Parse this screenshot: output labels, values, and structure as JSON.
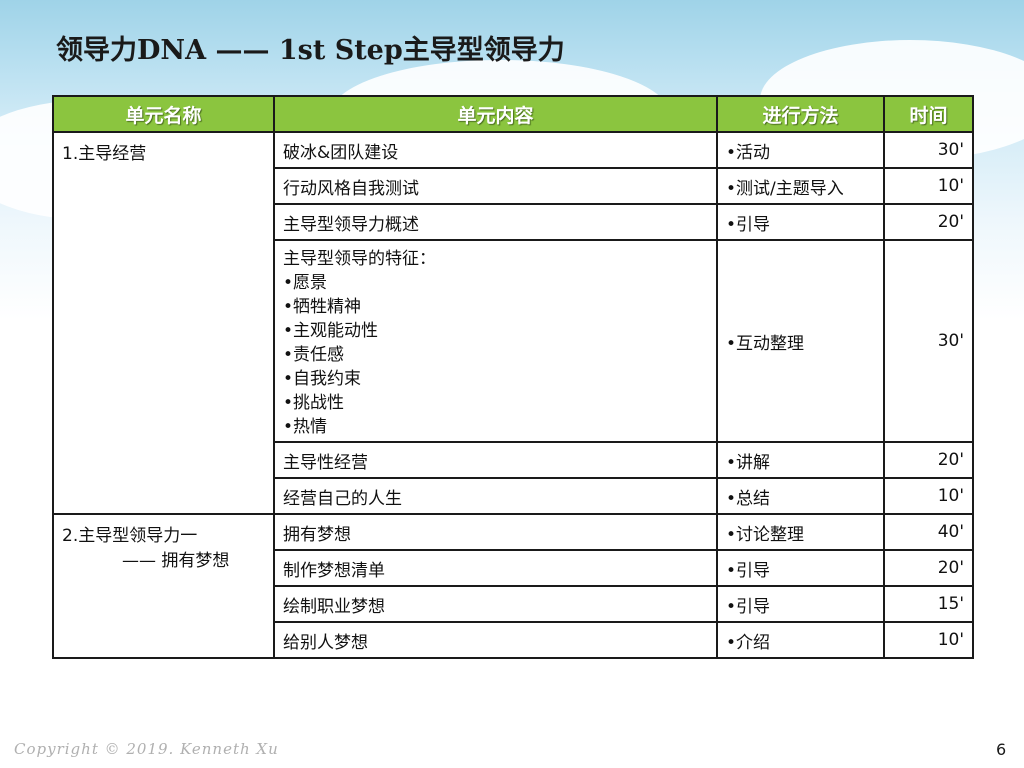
{
  "slide": {
    "title": "领导力DNA —— 1st Step主导型领导力",
    "footer": "Copyright © 2019. Kenneth Xu",
    "page_number": "6"
  },
  "table": {
    "headers": [
      "单元名称",
      "单元内容",
      "进行方法",
      "时间"
    ],
    "header_color": "#8bc53f",
    "units": [
      {
        "name_line1": "1.主导经营",
        "name_line2": ""
      },
      {
        "name_line1": "2.主导型领导力一",
        "name_line2": "—— 拥有梦想"
      }
    ],
    "rows": [
      {
        "content": "破冰&团队建设",
        "method": "•活动",
        "time": "30'"
      },
      {
        "content": "行动风格自我测试",
        "method": "•测试/主题导入",
        "time": "10'"
      },
      {
        "content": "主导型领导力概述",
        "method": "•引导",
        "time": "20'"
      },
      {
        "content_lines": [
          "主导型领导的特征：",
          "•愿景",
          "•牺牲精神",
          "•主观能动性",
          "•责任感",
          "•自我约束",
          "•挑战性",
          "•热情"
        ],
        "method": "•互动整理",
        "time": "30'"
      },
      {
        "content": "主导性经营",
        "method": "•讲解",
        "time": "20'"
      },
      {
        "content": "经营自己的人生",
        "method": "•总结",
        "time": "10'"
      },
      {
        "content": "拥有梦想",
        "method": "•讨论整理",
        "time": "40'"
      },
      {
        "content": "制作梦想清单",
        "method": "•引导",
        "time": "20'"
      },
      {
        "content": "绘制职业梦想",
        "method": "•引导",
        "time": "15'"
      },
      {
        "content": "给别人梦想",
        "method": "•介绍",
        "time": "10'"
      }
    ]
  }
}
